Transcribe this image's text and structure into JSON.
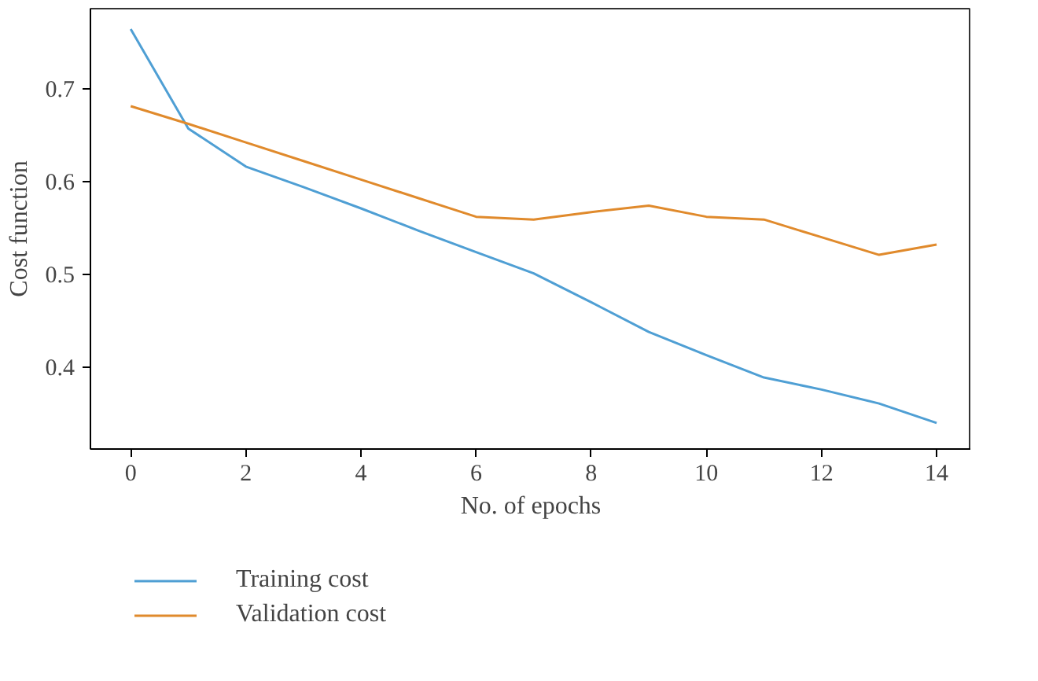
{
  "chart_data": {
    "type": "line",
    "xlabel": "No. of epochs",
    "ylabel": "Cost function",
    "x": [
      0,
      1,
      2,
      3,
      4,
      5,
      6,
      7,
      8,
      9,
      10,
      11,
      12,
      13,
      14
    ],
    "series": [
      {
        "name": "Training cost",
        "color": "#4f9fd4",
        "values": [
          0.764,
          0.657,
          0.616,
          0.594,
          0.571,
          0.547,
          0.524,
          0.501,
          0.47,
          0.438,
          0.413,
          0.389,
          0.376,
          0.361,
          0.34
        ]
      },
      {
        "name": "Validation cost",
        "color": "#e08a2c",
        "values": [
          0.681,
          0.662,
          0.642,
          0.622,
          0.602,
          0.582,
          0.562,
          0.559,
          0.567,
          0.574,
          0.562,
          0.559,
          0.54,
          0.521,
          0.532
        ]
      }
    ],
    "xlim": [
      -0.7,
      14.6
    ],
    "ylim": [
      0.312,
      0.786
    ],
    "xticks": [
      0,
      2,
      4,
      6,
      8,
      10,
      12,
      14
    ],
    "yticks": [
      0.4,
      0.5,
      0.6,
      0.7
    ],
    "grid": false,
    "legend": "bottom left",
    "marker": "none",
    "line_style": "solid"
  }
}
